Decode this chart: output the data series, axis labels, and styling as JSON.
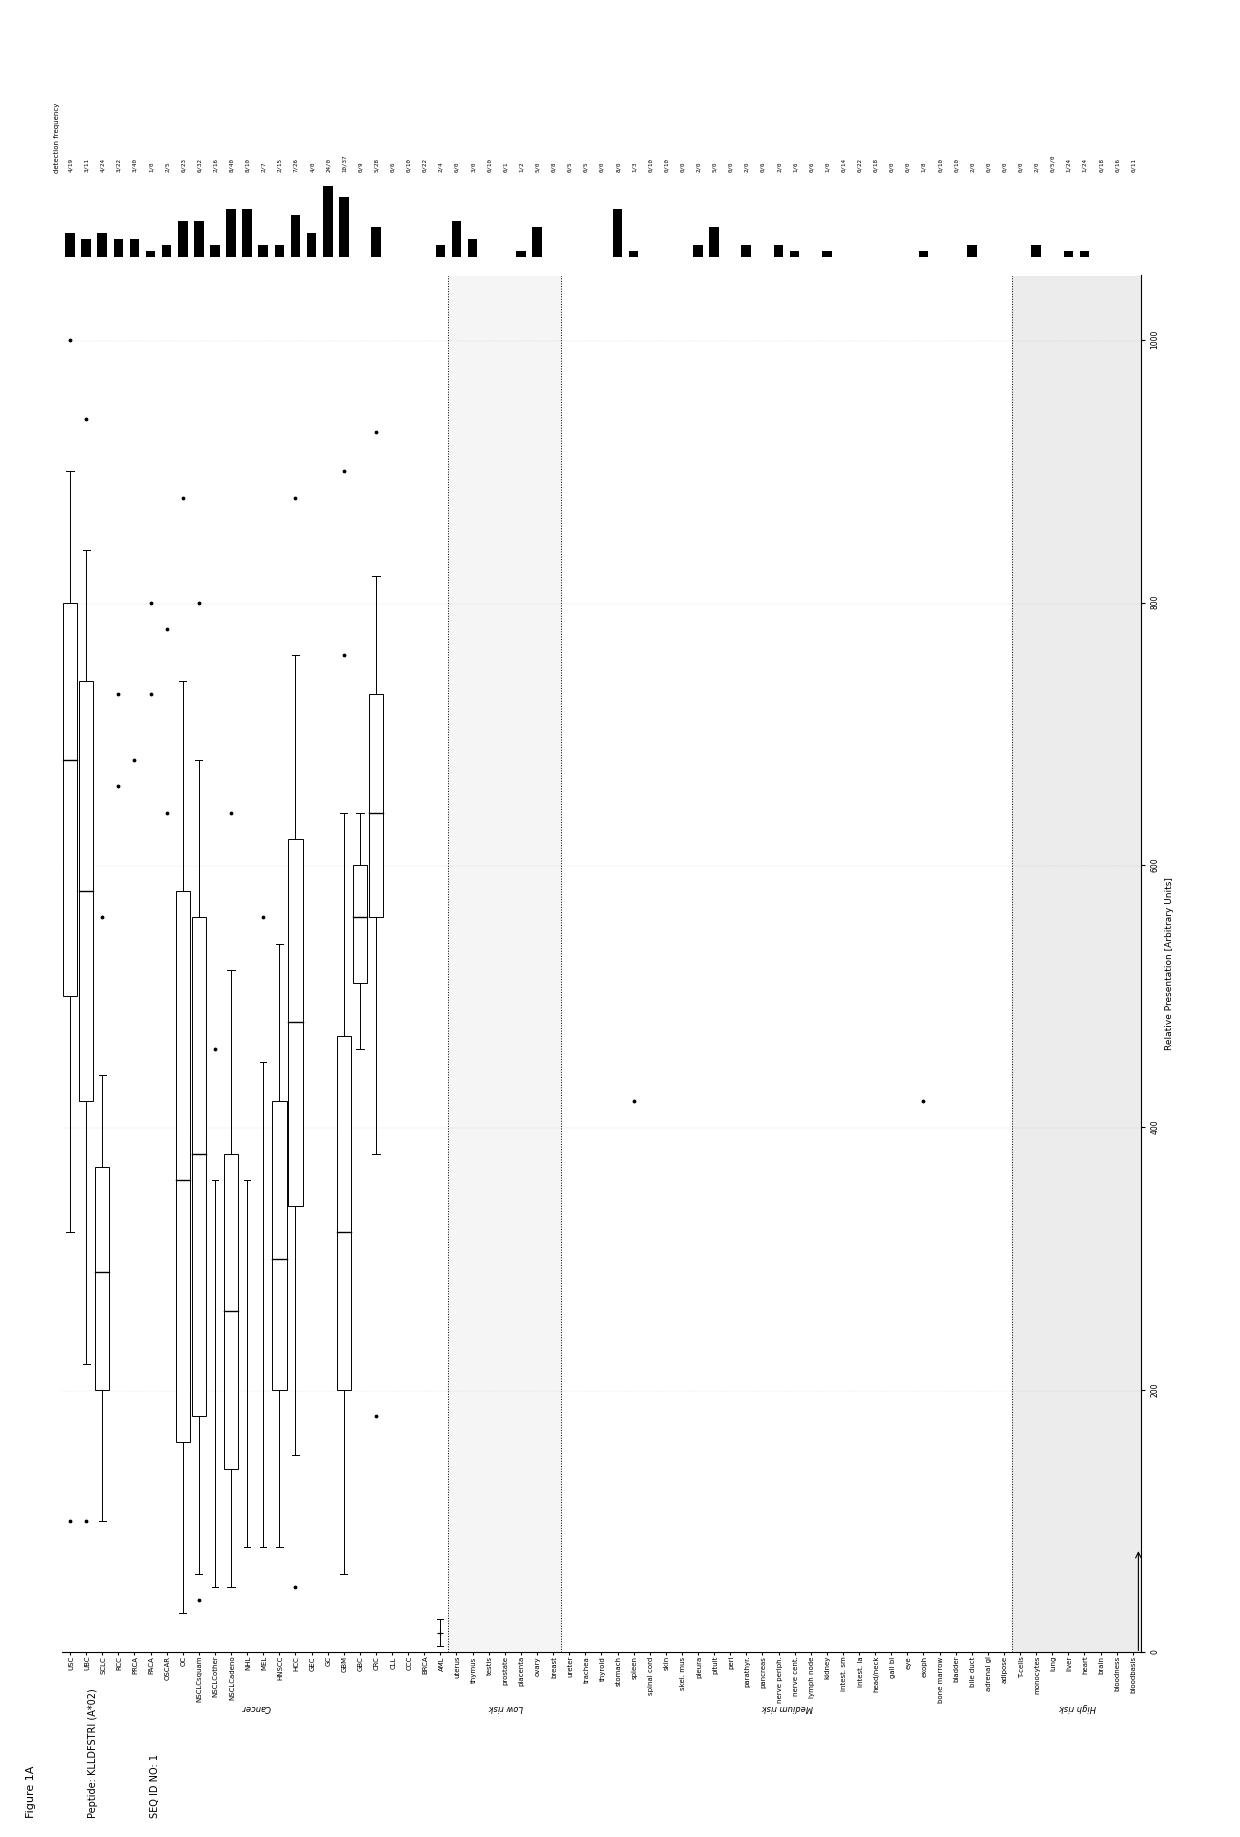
{
  "title_line1": "Figure 1A",
  "title_line2": "Peptide: KLLDFSTRI (A*02)",
  "title_line3": "SEQ ID NO: 1",
  "xlabel": "Relative Presentation [Arbitrary Units]",
  "freq_label": "detection frequency",
  "rows": [
    {
      "label": "bloodbasis",
      "freq": "0/11",
      "section": "high",
      "q1": null,
      "q3": null,
      "median": null,
      "wl": null,
      "wh": null,
      "outliers": []
    },
    {
      "label": "bloodness",
      "freq": "0/16",
      "section": "high",
      "q1": null,
      "q3": null,
      "median": null,
      "wl": null,
      "wh": null,
      "outliers": []
    },
    {
      "label": "brain",
      "freq": "0/18",
      "section": "high",
      "q1": null,
      "q3": null,
      "median": null,
      "wl": null,
      "wh": null,
      "outliers": []
    },
    {
      "label": "heart",
      "freq": "1/24",
      "section": "high",
      "q1": null,
      "q3": null,
      "median": null,
      "wl": null,
      "wh": null,
      "outliers": []
    },
    {
      "label": "liver",
      "freq": "1/24",
      "section": "high",
      "q1": null,
      "q3": null,
      "median": null,
      "wl": null,
      "wh": null,
      "outliers": []
    },
    {
      "label": "lung",
      "freq": "0/5/0",
      "section": "high",
      "q1": null,
      "q3": null,
      "median": null,
      "wl": null,
      "wh": null,
      "outliers": []
    },
    {
      "label": "monocytes",
      "freq": "2/0",
      "section": "high",
      "q1": null,
      "q3": null,
      "median": null,
      "wl": null,
      "wh": null,
      "outliers": []
    },
    {
      "label": "T-cells",
      "freq": "0/0",
      "section": "high",
      "q1": null,
      "q3": null,
      "median": null,
      "wl": null,
      "wh": null,
      "outliers": []
    },
    {
      "label": "adipose",
      "freq": "0/0",
      "section": "medium",
      "q1": null,
      "q3": null,
      "median": null,
      "wl": null,
      "wh": null,
      "outliers": []
    },
    {
      "label": "adrenal gl",
      "freq": "0/0",
      "section": "medium",
      "q1": null,
      "q3": null,
      "median": null,
      "wl": null,
      "wh": null,
      "outliers": []
    },
    {
      "label": "bile duct",
      "freq": "2/0",
      "section": "medium",
      "q1": null,
      "q3": null,
      "median": null,
      "wl": null,
      "wh": null,
      "outliers": []
    },
    {
      "label": "bladder",
      "freq": "0/10",
      "section": "medium",
      "q1": null,
      "q3": null,
      "median": null,
      "wl": null,
      "wh": null,
      "outliers": []
    },
    {
      "label": "bone marrow",
      "freq": "0/10",
      "section": "medium",
      "q1": null,
      "q3": null,
      "median": null,
      "wl": null,
      "wh": null,
      "outliers": []
    },
    {
      "label": "exoph",
      "freq": "1/8",
      "section": "medium",
      "q1": null,
      "q3": null,
      "median": null,
      "wl": null,
      "wh": null,
      "outliers": [
        420
      ]
    },
    {
      "label": "eye",
      "freq": "0/0",
      "section": "medium",
      "q1": null,
      "q3": null,
      "median": null,
      "wl": null,
      "wh": null,
      "outliers": []
    },
    {
      "label": "gall bl",
      "freq": "0/0",
      "section": "medium",
      "q1": null,
      "q3": null,
      "median": null,
      "wl": null,
      "wh": null,
      "outliers": []
    },
    {
      "label": "head/neck",
      "freq": "0/18",
      "section": "medium",
      "q1": null,
      "q3": null,
      "median": null,
      "wl": null,
      "wh": null,
      "outliers": []
    },
    {
      "label": "intest. la",
      "freq": "0/22",
      "section": "medium",
      "q1": null,
      "q3": null,
      "median": null,
      "wl": null,
      "wh": null,
      "outliers": []
    },
    {
      "label": "intest. sm",
      "freq": "0/14",
      "section": "medium",
      "q1": null,
      "q3": null,
      "median": null,
      "wl": null,
      "wh": null,
      "outliers": []
    },
    {
      "label": "kidney",
      "freq": "1/0",
      "section": "medium",
      "q1": null,
      "q3": null,
      "median": null,
      "wl": null,
      "wh": null,
      "outliers": []
    },
    {
      "label": "lymph node",
      "freq": "0/6",
      "section": "medium",
      "q1": null,
      "q3": null,
      "median": null,
      "wl": null,
      "wh": null,
      "outliers": []
    },
    {
      "label": "nerve cent.",
      "freq": "1/6",
      "section": "medium",
      "q1": null,
      "q3": null,
      "median": null,
      "wl": null,
      "wh": null,
      "outliers": []
    },
    {
      "label": "nerve periph.",
      "freq": "2/0",
      "section": "medium",
      "q1": null,
      "q3": null,
      "median": null,
      "wl": null,
      "wh": null,
      "outliers": []
    },
    {
      "label": "pancreas",
      "freq": "0/6",
      "section": "medium",
      "q1": null,
      "q3": null,
      "median": null,
      "wl": null,
      "wh": null,
      "outliers": []
    },
    {
      "label": "parathyr.",
      "freq": "2/0",
      "section": "medium",
      "q1": null,
      "q3": null,
      "median": null,
      "wl": null,
      "wh": null,
      "outliers": []
    },
    {
      "label": "peri",
      "freq": "0/0",
      "section": "medium",
      "q1": null,
      "q3": null,
      "median": null,
      "wl": null,
      "wh": null,
      "outliers": []
    },
    {
      "label": "pituit",
      "freq": "5/0",
      "section": "medium",
      "q1": null,
      "q3": null,
      "median": null,
      "wl": null,
      "wh": null,
      "outliers": []
    },
    {
      "label": "pleura",
      "freq": "2/0",
      "section": "medium",
      "q1": null,
      "q3": null,
      "median": null,
      "wl": null,
      "wh": null,
      "outliers": []
    },
    {
      "label": "skel. mus",
      "freq": "0/0",
      "section": "medium",
      "q1": null,
      "q3": null,
      "median": null,
      "wl": null,
      "wh": null,
      "outliers": []
    },
    {
      "label": "skin",
      "freq": "0/10",
      "section": "medium",
      "q1": null,
      "q3": null,
      "median": null,
      "wl": null,
      "wh": null,
      "outliers": []
    },
    {
      "label": "spinal cord",
      "freq": "0/10",
      "section": "medium",
      "q1": null,
      "q3": null,
      "median": null,
      "wl": null,
      "wh": null,
      "outliers": []
    },
    {
      "label": "spleen",
      "freq": "1/3",
      "section": "medium",
      "q1": null,
      "q3": null,
      "median": null,
      "wl": null,
      "wh": null,
      "outliers": [
        420
      ]
    },
    {
      "label": "stomach",
      "freq": "8/0",
      "section": "medium",
      "q1": null,
      "q3": null,
      "median": null,
      "wl": null,
      "wh": null,
      "outliers": []
    },
    {
      "label": "thyroid",
      "freq": "0/0",
      "section": "medium",
      "q1": null,
      "q3": null,
      "median": null,
      "wl": null,
      "wh": null,
      "outliers": []
    },
    {
      "label": "trachea",
      "freq": "0/5",
      "section": "medium",
      "q1": null,
      "q3": null,
      "median": null,
      "wl": null,
      "wh": null,
      "outliers": []
    },
    {
      "label": "ureter",
      "freq": "0/5",
      "section": "medium",
      "q1": null,
      "q3": null,
      "median": null,
      "wl": null,
      "wh": null,
      "outliers": []
    },
    {
      "label": "breast",
      "freq": "0/8",
      "section": "low",
      "q1": null,
      "q3": null,
      "median": null,
      "wl": null,
      "wh": null,
      "outliers": []
    },
    {
      "label": "ovary",
      "freq": "5/0",
      "section": "low",
      "q1": null,
      "q3": null,
      "median": null,
      "wl": null,
      "wh": null,
      "outliers": []
    },
    {
      "label": "placenta",
      "freq": "1/2",
      "section": "low",
      "q1": null,
      "q3": null,
      "median": null,
      "wl": null,
      "wh": null,
      "outliers": []
    },
    {
      "label": "prostate",
      "freq": "0/1",
      "section": "low",
      "q1": null,
      "q3": null,
      "median": null,
      "wl": null,
      "wh": null,
      "outliers": []
    },
    {
      "label": "testis",
      "freq": "0/10",
      "section": "low",
      "q1": null,
      "q3": null,
      "median": null,
      "wl": null,
      "wh": null,
      "outliers": []
    },
    {
      "label": "thymus",
      "freq": "3/0",
      "section": "low",
      "q1": null,
      "q3": null,
      "median": null,
      "wl": null,
      "wh": null,
      "outliers": []
    },
    {
      "label": "uterus",
      "freq": "6/0",
      "section": "low",
      "q1": null,
      "q3": null,
      "median": null,
      "wl": null,
      "wh": null,
      "outliers": []
    },
    {
      "label": "AML",
      "freq": "2/4",
      "section": "cancer",
      "q1": null,
      "q3": null,
      "median": 15,
      "wl": 5,
      "wh": 25,
      "outliers": []
    },
    {
      "label": "BRCA",
      "freq": "0/22",
      "section": "cancer",
      "q1": null,
      "q3": null,
      "median": null,
      "wl": null,
      "wh": null,
      "outliers": []
    },
    {
      "label": "CCC",
      "freq": "0/10",
      "section": "cancer",
      "q1": null,
      "q3": null,
      "median": null,
      "wl": null,
      "wh": null,
      "outliers": []
    },
    {
      "label": "CLL",
      "freq": "0/6",
      "section": "cancer",
      "q1": null,
      "q3": null,
      "median": null,
      "wl": null,
      "wh": null,
      "outliers": []
    },
    {
      "label": "CRC",
      "freq": "5/28",
      "section": "cancer",
      "q1": 560,
      "q3": 730,
      "median": 640,
      "wl": 380,
      "wh": 820,
      "outliers": [
        180,
        930
      ]
    },
    {
      "label": "GBC",
      "freq": "0/9",
      "section": "cancer",
      "q1": 510,
      "q3": 600,
      "median": 560,
      "wl": 460,
      "wh": 640,
      "outliers": []
    },
    {
      "label": "GBM",
      "freq": "10/37",
      "section": "cancer",
      "q1": 200,
      "q3": 470,
      "median": 320,
      "wl": 60,
      "wh": 640,
      "outliers": [
        760,
        900
      ]
    },
    {
      "label": "GC",
      "freq": "24/0",
      "section": "cancer",
      "q1": null,
      "q3": null,
      "median": null,
      "wl": null,
      "wh": null,
      "outliers": []
    },
    {
      "label": "GEC",
      "freq": "4/0",
      "section": "cancer",
      "q1": null,
      "q3": null,
      "median": null,
      "wl": null,
      "wh": null,
      "outliers": []
    },
    {
      "label": "HCC",
      "freq": "7/26",
      "section": "cancer",
      "q1": 340,
      "q3": 620,
      "median": 480,
      "wl": 150,
      "wh": 760,
      "outliers": [
        50,
        880
      ]
    },
    {
      "label": "HNSCC",
      "freq": "2/15",
      "section": "cancer",
      "q1": 200,
      "q3": 420,
      "median": 300,
      "wl": 80,
      "wh": 540,
      "outliers": []
    },
    {
      "label": "MEL",
      "freq": "2/7",
      "section": "cancer",
      "q1": null,
      "q3": null,
      "median": null,
      "wl": 80,
      "wh": 450,
      "outliers": [
        560
      ]
    },
    {
      "label": "NHL",
      "freq": "8/10",
      "section": "cancer",
      "q1": null,
      "q3": null,
      "median": null,
      "wl": 80,
      "wh": 360,
      "outliers": []
    },
    {
      "label": "NSCLCadeno",
      "freq": "8/40",
      "section": "cancer",
      "q1": 140,
      "q3": 380,
      "median": 260,
      "wl": 50,
      "wh": 520,
      "outliers": [
        640
      ]
    },
    {
      "label": "NSCLCother",
      "freq": "2/16",
      "section": "cancer",
      "q1": null,
      "q3": null,
      "median": null,
      "wl": 50,
      "wh": 360,
      "outliers": [
        460
      ]
    },
    {
      "label": "NSCLCsquam",
      "freq": "6/32",
      "section": "cancer",
      "q1": 180,
      "q3": 560,
      "median": 380,
      "wl": 60,
      "wh": 680,
      "outliers": [
        40,
        800
      ]
    },
    {
      "label": "OC",
      "freq": "6/23",
      "section": "cancer",
      "q1": 160,
      "q3": 580,
      "median": 360,
      "wl": 30,
      "wh": 740,
      "outliers": [
        880
      ]
    },
    {
      "label": "OSCAR",
      "freq": "2/5",
      "section": "cancer",
      "q1": null,
      "q3": null,
      "median": null,
      "wl": null,
      "wh": null,
      "outliers": [
        640,
        780
      ]
    },
    {
      "label": "PACA",
      "freq": "1/0",
      "section": "cancer",
      "q1": null,
      "q3": null,
      "median": null,
      "wl": null,
      "wh": null,
      "outliers": [
        730,
        800
      ]
    },
    {
      "label": "PRCA",
      "freq": "3/40",
      "section": "cancer",
      "q1": null,
      "q3": null,
      "median": null,
      "wl": null,
      "wh": null,
      "outliers": [
        680
      ]
    },
    {
      "label": "RCC",
      "freq": "3/22",
      "section": "cancer",
      "q1": null,
      "q3": null,
      "median": null,
      "wl": null,
      "wh": null,
      "outliers": [
        660,
        730
      ]
    },
    {
      "label": "SCLC",
      "freq": "4/24",
      "section": "cancer",
      "q1": 200,
      "q3": 370,
      "median": 290,
      "wl": 100,
      "wh": 440,
      "outliers": [
        560
      ]
    },
    {
      "label": "UBC",
      "freq": "3/11",
      "section": "cancer",
      "q1": 420,
      "q3": 740,
      "median": 580,
      "wl": 220,
      "wh": 840,
      "outliers": [
        100,
        940
      ]
    },
    {
      "label": "USC",
      "freq": "4/19",
      "section": "cancer",
      "q1": 500,
      "q3": 800,
      "median": 680,
      "wl": 320,
      "wh": 900,
      "outliers": [
        100,
        1000
      ]
    }
  ],
  "xmax": 1050,
  "freq_bar_scale": 40
}
